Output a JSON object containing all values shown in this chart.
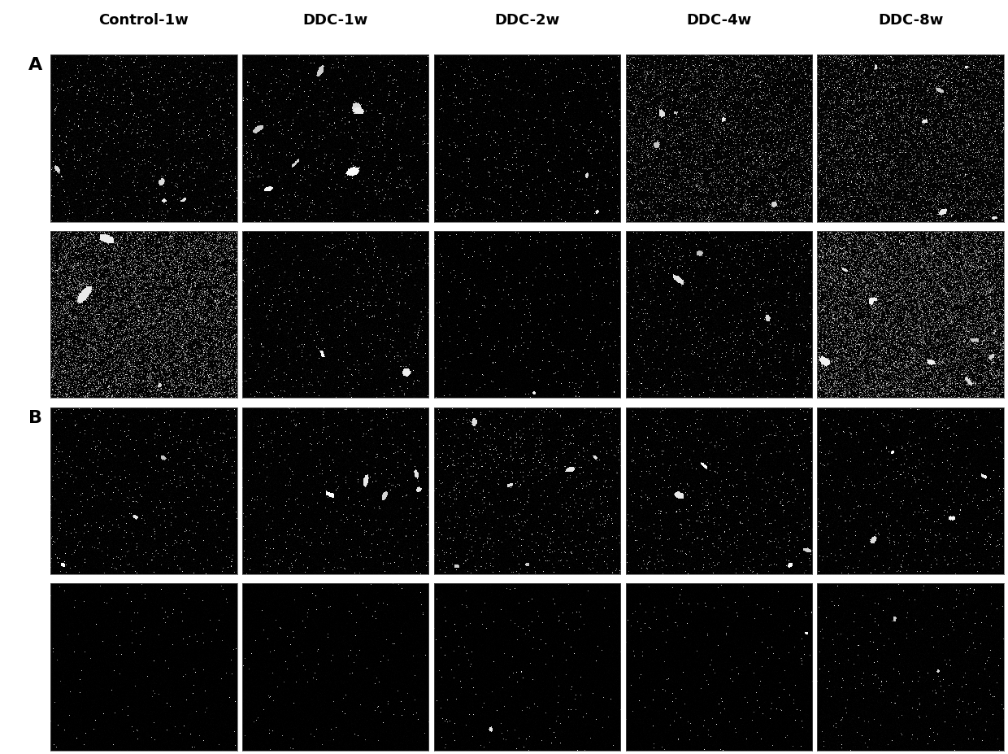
{
  "col_labels": [
    "Control-1w",
    "DDC-1w",
    "DDC-2w",
    "DDC-4w",
    "DDC-8w"
  ],
  "row_group_labels": [
    "A",
    "B"
  ],
  "n_cols": 5,
  "n_rows": 4,
  "background_color": "#ffffff",
  "col_label_fontsize": 13,
  "row_label_fontsize": 16,
  "panel_configs": [
    [
      {
        "seed": 42,
        "bg_noise": 0.06,
        "speckle_density": 0.015,
        "n_spots": 4,
        "spot_max_r": 5,
        "grainy": false
      },
      {
        "seed": 123,
        "bg_noise": 0.05,
        "speckle_density": 0.012,
        "n_spots": 7,
        "spot_max_r": 8,
        "grainy": false
      },
      {
        "seed": 77,
        "bg_noise": 0.04,
        "speckle_density": 0.01,
        "n_spots": 2,
        "spot_max_r": 4,
        "grainy": false
      },
      {
        "seed": 55,
        "bg_noise": 0.07,
        "speckle_density": 0.018,
        "n_spots": 5,
        "spot_max_r": 5,
        "grainy": true,
        "grain_level": 0.15
      },
      {
        "seed": 200,
        "bg_noise": 0.08,
        "speckle_density": 0.02,
        "n_spots": 6,
        "spot_max_r": 5,
        "grainy": true,
        "grain_level": 0.18
      }
    ],
    [
      {
        "seed": 11,
        "bg_noise": 0.05,
        "speckle_density": 0.03,
        "n_spots": 3,
        "spot_max_r": 12,
        "grainy": true,
        "grain_level": 0.4
      },
      {
        "seed": 88,
        "bg_noise": 0.05,
        "speckle_density": 0.012,
        "n_spots": 2,
        "spot_max_r": 12,
        "grainy": false
      },
      {
        "seed": 33,
        "bg_noise": 0.03,
        "speckle_density": 0.008,
        "n_spots": 1,
        "spot_max_r": 4,
        "grainy": false
      },
      {
        "seed": 99,
        "bg_noise": 0.05,
        "speckle_density": 0.015,
        "n_spots": 3,
        "spot_max_r": 10,
        "grainy": false
      },
      {
        "seed": 44,
        "bg_noise": 0.06,
        "speckle_density": 0.025,
        "n_spots": 8,
        "spot_max_r": 8,
        "grainy": true,
        "grain_level": 0.45
      }
    ],
    [
      {
        "seed": 66,
        "bg_noise": 0.04,
        "speckle_density": 0.012,
        "n_spots": 3,
        "spot_max_r": 5,
        "grainy": false
      },
      {
        "seed": 22,
        "bg_noise": 0.04,
        "speckle_density": 0.01,
        "n_spots": 5,
        "spot_max_r": 8,
        "grainy": false
      },
      {
        "seed": 111,
        "bg_noise": 0.04,
        "speckle_density": 0.015,
        "n_spots": 6,
        "spot_max_r": 5,
        "grainy": false
      },
      {
        "seed": 77,
        "bg_noise": 0.04,
        "speckle_density": 0.012,
        "n_spots": 4,
        "spot_max_r": 6,
        "grainy": false
      },
      {
        "seed": 55,
        "bg_noise": 0.04,
        "speckle_density": 0.012,
        "n_spots": 4,
        "spot_max_r": 5,
        "grainy": false
      }
    ],
    [
      {
        "seed": 9,
        "bg_noise": 0.02,
        "speckle_density": 0.003,
        "n_spots": 0,
        "spot_max_r": 3,
        "grainy": false
      },
      {
        "seed": 17,
        "bg_noise": 0.02,
        "speckle_density": 0.003,
        "n_spots": 0,
        "spot_max_r": 3,
        "grainy": false
      },
      {
        "seed": 3,
        "bg_noise": 0.02,
        "speckle_density": 0.004,
        "n_spots": 1,
        "spot_max_r": 3,
        "grainy": false
      },
      {
        "seed": 5,
        "bg_noise": 0.02,
        "speckle_density": 0.004,
        "n_spots": 1,
        "spot_max_r": 3,
        "grainy": false
      },
      {
        "seed": 7,
        "bg_noise": 0.03,
        "speckle_density": 0.006,
        "n_spots": 2,
        "spot_max_r": 3,
        "grainy": false
      }
    ]
  ]
}
